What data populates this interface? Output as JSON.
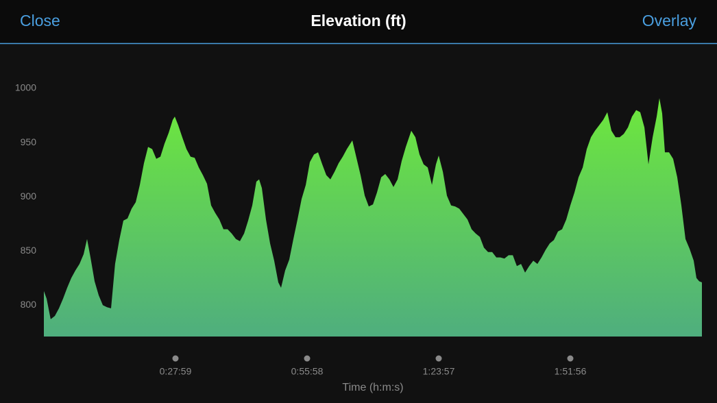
{
  "header": {
    "close": "Close",
    "overlay": "Overlay"
  },
  "chart_data": {
    "type": "area",
    "title": "Elevation (ft)",
    "x_label": "Time (h:m:s)",
    "gradient": [
      "#6ee83c",
      "#4fae7e"
    ],
    "xlim": [
      0,
      8395
    ],
    "xticks": [
      {
        "value": 1679,
        "label": "0:27:59"
      },
      {
        "value": 3358,
        "label": "0:55:58"
      },
      {
        "value": 5037,
        "label": "1:23:57"
      },
      {
        "value": 6716,
        "label": "1:51:56"
      }
    ],
    "ylim": [
      771,
      1030
    ],
    "yticks": [
      800,
      850,
      900,
      950,
      1000
    ],
    "x": [
      0,
      35,
      87,
      140,
      192,
      245,
      297,
      350,
      402,
      455,
      507,
      551,
      595,
      647,
      700,
      752,
      805,
      857,
      909,
      962,
      1014,
      1067,
      1119,
      1172,
      1224,
      1277,
      1329,
      1382,
      1434,
      1487,
      1539,
      1592,
      1644,
      1670,
      1714,
      1766,
      1819,
      1871,
      1924,
      1976,
      2029,
      2081,
      2134,
      2186,
      2239,
      2291,
      2344,
      2396,
      2449,
      2501,
      2554,
      2606,
      2658,
      2711,
      2746,
      2781,
      2833,
      2886,
      2938,
      2991,
      3026,
      3078,
      3131,
      3183,
      3236,
      3288,
      3341,
      3393,
      3446,
      3498,
      3551,
      3603,
      3655,
      3708,
      3760,
      3813,
      3865,
      3935,
      3988,
      4040,
      4093,
      4145,
      4198,
      4250,
      4303,
      4355,
      4408,
      4460,
      4512,
      4565,
      4617,
      4687,
      4740,
      4792,
      4845,
      4897,
      4950,
      5002,
      5037,
      5090,
      5142,
      5195,
      5247,
      5299,
      5352,
      5404,
      5457,
      5509,
      5562,
      5614,
      5667,
      5719,
      5772,
      5824,
      5876,
      5929,
      5982,
      6034,
      6087,
      6139,
      6191,
      6244,
      6296,
      6349,
      6401,
      6454,
      6506,
      6559,
      6611,
      6664,
      6716,
      6769,
      6821,
      6874,
      6926,
      6979,
      7031,
      7084,
      7136,
      7188,
      7241,
      7293,
      7346,
      7398,
      7451,
      7503,
      7556,
      7608,
      7661,
      7713,
      7766,
      7818,
      7853,
      7888,
      7923,
      7975,
      8028,
      8080,
      8133,
      8185,
      8238,
      8290,
      8325,
      8360,
      8395
    ],
    "values": [
      813,
      806,
      787,
      790,
      797,
      806,
      816,
      825,
      832,
      838,
      847,
      861,
      844,
      822,
      809,
      800,
      798,
      797,
      838,
      860,
      878,
      880,
      889,
      895,
      911,
      931,
      946,
      944,
      935,
      937,
      949,
      959,
      971,
      974,
      966,
      955,
      944,
      937,
      936,
      927,
      920,
      912,
      892,
      885,
      879,
      870,
      870,
      866,
      861,
      859,
      866,
      878,
      892,
      914,
      916,
      908,
      879,
      857,
      841,
      821,
      816,
      832,
      842,
      861,
      879,
      898,
      911,
      932,
      939,
      941,
      930,
      920,
      916,
      923,
      931,
      937,
      944,
      952,
      936,
      920,
      901,
      891,
      893,
      904,
      918,
      921,
      916,
      909,
      916,
      933,
      946,
      961,
      955,
      939,
      930,
      927,
      911,
      930,
      938,
      923,
      901,
      892,
      891,
      889,
      884,
      879,
      870,
      866,
      863,
      853,
      849,
      849,
      844,
      844,
      843,
      846,
      846,
      836,
      838,
      830,
      836,
      841,
      838,
      844,
      851,
      857,
      860,
      868,
      870,
      879,
      892,
      904,
      918,
      927,
      944,
      955,
      961,
      966,
      971,
      978,
      961,
      955,
      955,
      958,
      964,
      974,
      980,
      978,
      964,
      930,
      955,
      974,
      991,
      977,
      941,
      941,
      935,
      918,
      892,
      861,
      852,
      841,
      825,
      822,
      821
    ]
  }
}
